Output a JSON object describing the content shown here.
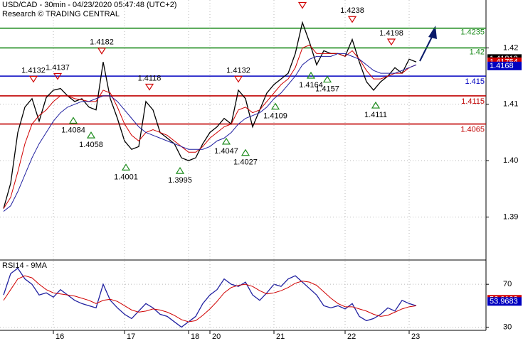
{
  "chart_data": [
    {
      "type": "line",
      "title": "USD/CAD - 30min - 04/23/2020 05:47:48 (UTC+2)",
      "subtitle": "Research © TRADING CENTRAL",
      "categories": [
        null,
        null,
        null,
        null,
        null,
        null,
        null,
        "16",
        null,
        null,
        null,
        null,
        null,
        null,
        null,
        null,
        null,
        "17",
        null,
        null,
        null,
        null,
        null,
        null,
        null,
        null,
        "18",
        null,
        null,
        "20",
        null,
        null,
        null,
        null,
        null,
        null,
        null,
        null,
        "21",
        null,
        null,
        null,
        null,
        null,
        null,
        null,
        null,
        null,
        "22",
        null,
        null,
        null,
        null,
        null,
        null,
        null,
        null,
        "23",
        null
      ],
      "series": [
        {
          "name": "price",
          "color": "#000000",
          "values": [
            1.3915,
            1.396,
            1.405,
            1.4095,
            1.411,
            1.407,
            1.4112,
            1.4125,
            1.4128,
            1.4115,
            1.4105,
            1.411,
            1.4095,
            1.409,
            1.4175,
            1.411,
            1.4075,
            1.4035,
            1.402,
            1.4025,
            1.4105,
            1.409,
            1.405,
            1.404,
            1.403,
            1.4005,
            1.4,
            1.4005,
            1.403,
            1.405,
            1.406,
            1.4075,
            1.4065,
            1.4125,
            1.411,
            1.406,
            1.409,
            1.412,
            1.4135,
            1.4145,
            1.4155,
            1.419,
            1.4245,
            1.421,
            1.417,
            1.4195,
            1.419,
            1.419,
            1.4185,
            1.4215,
            1.4175,
            1.414,
            1.4125,
            1.414,
            1.415,
            1.4165,
            1.4155,
            1.418,
            1.4175
          ]
        },
        {
          "name": "fast-ma",
          "color": "#d00000",
          "values": [
            1.3915,
            1.3935,
            1.398,
            1.403,
            1.4065,
            1.408,
            1.409,
            1.4105,
            1.4115,
            1.4115,
            1.411,
            1.4108,
            1.4105,
            1.4105,
            1.4125,
            1.412,
            1.4095,
            1.4065,
            1.4045,
            1.4035,
            1.405,
            1.4055,
            1.405,
            1.4045,
            1.4035,
            1.4025,
            1.4015,
            1.4015,
            1.4025,
            1.404,
            1.405,
            1.406,
            1.4065,
            1.409,
            1.4095,
            1.4085,
            1.409,
            1.4105,
            1.412,
            1.4135,
            1.4145,
            1.4165,
            1.42,
            1.4205,
            1.419,
            1.419,
            1.419,
            1.419,
            1.4185,
            1.4195,
            1.418,
            1.416,
            1.4145,
            1.4145,
            1.415,
            1.4155,
            1.4155,
            1.4165,
            1.417
          ]
        },
        {
          "name": "slow-ma",
          "color": "#2020a0",
          "values": [
            1.391,
            1.392,
            1.3945,
            1.3975,
            1.4005,
            1.403,
            1.405,
            1.407,
            1.4085,
            1.4095,
            1.41,
            1.4105,
            1.4105,
            1.411,
            1.4115,
            1.4115,
            1.4105,
            1.409,
            1.4075,
            1.406,
            1.405,
            1.4045,
            1.404,
            1.4035,
            1.403,
            1.4025,
            1.402,
            1.402,
            1.402,
            1.4025,
            1.4035,
            1.404,
            1.405,
            1.4065,
            1.4075,
            1.408,
            1.4085,
            1.4095,
            1.411,
            1.412,
            1.4135,
            1.415,
            1.417,
            1.418,
            1.4185,
            1.4185,
            1.4185,
            1.419,
            1.419,
            1.4185,
            1.418,
            1.417,
            1.416,
            1.4155,
            1.4155,
            1.4155,
            1.416,
            1.4165,
            1.417
          ]
        }
      ],
      "levels": [
        {
          "value": 1.4235,
          "color": "#1a8a1a"
        },
        {
          "value": 1.42,
          "color": "#1a8a1a"
        },
        {
          "value": 1.415,
          "color": "#0000c0"
        },
        {
          "value": 1.4115,
          "color": "#c00000"
        },
        {
          "value": 1.4065,
          "color": "#c00000"
        }
      ],
      "pivots": [
        {
          "x": 4.2,
          "value": 1.4132,
          "type": "high"
        },
        {
          "x": 7.6,
          "value": 1.4137,
          "type": "high"
        },
        {
          "x": 13.8,
          "value": 1.4182,
          "type": "high"
        },
        {
          "x": 20.5,
          "value": 1.4118,
          "type": "high"
        },
        {
          "x": 33,
          "value": 1.4132,
          "type": "high"
        },
        {
          "x": 42,
          "value": 1.4263,
          "type": "high"
        },
        {
          "x": 49,
          "value": 1.4238,
          "type": "high"
        },
        {
          "x": 54.5,
          "value": 1.4198,
          "type": "high"
        },
        {
          "x": 9.8,
          "value": 1.4084,
          "type": "low"
        },
        {
          "x": 12.3,
          "value": 1.4058,
          "type": "low"
        },
        {
          "x": 17.2,
          "value": 1.4001,
          "type": "low"
        },
        {
          "x": 24.8,
          "value": 1.3995,
          "type": "low"
        },
        {
          "x": 31.3,
          "value": 1.4047,
          "type": "low"
        },
        {
          "x": 34,
          "value": 1.4027,
          "type": "low"
        },
        {
          "x": 38.2,
          "value": 1.4109,
          "type": "low"
        },
        {
          "x": 43.2,
          "value": 1.4164,
          "type": "low"
        },
        {
          "x": 45.5,
          "value": 1.4157,
          "type": "low"
        },
        {
          "x": 52.3,
          "value": 1.4111,
          "type": "low"
        }
      ],
      "price_tags": [
        {
          "value": 1.41812,
          "color": "#000000"
        },
        {
          "value": 1.41754,
          "color": "#d00000"
        },
        {
          "value": 1.4168,
          "color": "#0000c0"
        }
      ],
      "ylim": [
        1.3825,
        1.4285
      ],
      "yticks": [
        1.42,
        1.41,
        {
          "value": 1.4,
          "label": "1.40"
        },
        1.39
      ]
    },
    {
      "type": "line",
      "title": "RSI14 - 9MA",
      "series": [
        {
          "name": "rsi",
          "color": "#2020a0",
          "values": [
            60,
            80,
            85,
            75,
            70,
            60,
            62,
            58,
            65,
            60,
            55,
            52,
            50,
            48,
            70,
            55,
            48,
            42,
            38,
            45,
            52,
            48,
            42,
            40,
            35,
            30,
            35,
            40,
            52,
            60,
            65,
            75,
            70,
            68,
            72,
            60,
            55,
            62,
            70,
            68,
            75,
            78,
            72,
            66,
            60,
            50,
            48,
            50,
            47,
            52,
            40,
            36,
            38,
            42,
            48,
            45,
            55,
            52,
            50
          ]
        },
        {
          "name": "ma",
          "color": "#d00000",
          "values": [
            55,
            65,
            75,
            78,
            76,
            70,
            65,
            62,
            61,
            60,
            59,
            57,
            55,
            52,
            55,
            56,
            54,
            50,
            46,
            44,
            45,
            47,
            46,
            44,
            41,
            37,
            35,
            36,
            41,
            47,
            54,
            62,
            67,
            69,
            70,
            68,
            64,
            61,
            62,
            64,
            67,
            71,
            73,
            72,
            69,
            63,
            57,
            52,
            49,
            49,
            47,
            45,
            42,
            40,
            41,
            44,
            47,
            49,
            50
          ]
        }
      ],
      "price_tags": [
        {
          "value": 56.0109,
          "color": "#d00000"
        },
        {
          "value": 53.9683,
          "color": "#0000c0"
        }
      ],
      "ylim": [
        27,
        92
      ],
      "yticks": [
        70,
        30
      ]
    }
  ]
}
